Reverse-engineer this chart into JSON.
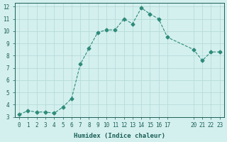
{
  "x": [
    0,
    1,
    2,
    3,
    4,
    5,
    6,
    7,
    8,
    9,
    10,
    11,
    12,
    13,
    14,
    15,
    16,
    17,
    20,
    21,
    22,
    23
  ],
  "y": [
    3.2,
    3.5,
    3.4,
    3.4,
    3.3,
    3.8,
    4.5,
    7.3,
    8.6,
    9.9,
    10.1,
    10.1,
    11.0,
    10.6,
    11.9,
    11.4,
    11.0,
    9.5,
    8.5,
    7.6,
    8.3,
    8.3
  ],
  "xlabel": "Humidex (Indice chaleur)",
  "ylabel": "",
  "xlim": [
    -0.5,
    23.5
  ],
  "ylim": [
    3,
    12.3
  ],
  "yticks": [
    3,
    4,
    5,
    6,
    7,
    8,
    9,
    10,
    11,
    12
  ],
  "xticks": [
    0,
    1,
    2,
    3,
    4,
    5,
    6,
    7,
    8,
    9,
    10,
    11,
    12,
    13,
    14,
    15,
    16,
    17,
    20,
    21,
    22,
    23
  ],
  "line_color": "#2e8b7a",
  "marker_color": "#2e8b7a",
  "bg_color": "#d4f0ee",
  "grid_color": "#b0d8d5",
  "title_color": "#1a5f57",
  "label_color": "#1a5f57",
  "tick_color": "#1a5f57"
}
